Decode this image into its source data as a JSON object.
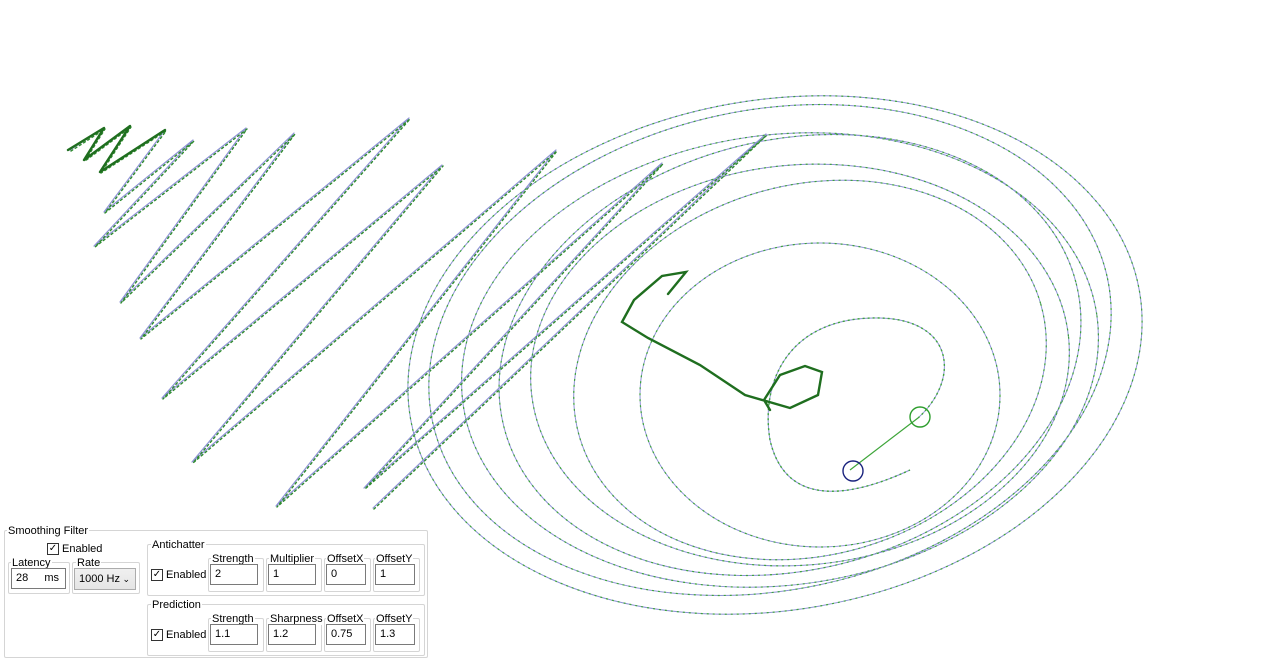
{
  "smoothing": {
    "title": "Smoothing Filter",
    "enabled_label": "Enabled",
    "enabled": true,
    "latency_label": "Latency",
    "latency_value": "28",
    "latency_unit": "ms",
    "rate_label": "Rate",
    "rate_value": "1000 Hz"
  },
  "antichatter": {
    "title": "Antichatter",
    "enabled_label": "Enabled",
    "enabled": true,
    "strength_label": "Strength",
    "strength_value": "2",
    "multiplier_label": "Multiplier",
    "multiplier_value": "1",
    "offsetx_label": "OffsetX",
    "offsetx_value": "0",
    "offsety_label": "OffsetY",
    "offsety_value": "1"
  },
  "prediction": {
    "title": "Prediction",
    "enabled_label": "Enabled",
    "enabled": true,
    "strength_label": "Strength",
    "strength_value": "1.1",
    "sharpness_label": "Sharpness",
    "sharpness_value": "1.2",
    "offsetx_label": "OffsetX",
    "offsetx_value": "0.75",
    "offsety_label": "OffsetY",
    "offsety_value": "1.3"
  },
  "colors": {
    "raw_path": "#8f93d6",
    "smoothed_path": "#3ea53a",
    "raw_cursor": "#1a237e",
    "smoothed_cursor": "#2e9e2e"
  },
  "icons": {
    "check": "check-icon",
    "dropdown": "chevron-down-icon"
  }
}
